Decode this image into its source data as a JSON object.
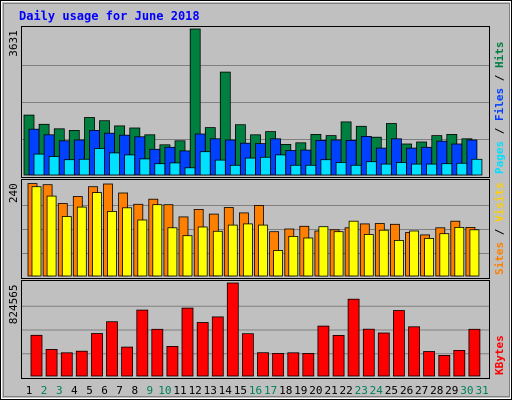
{
  "title": "Daily usage for June 2018",
  "chart_data": [
    {
      "type": "bar",
      "panel": "top",
      "ymax": 3631,
      "ymax_label": "3631",
      "categories": [
        "1",
        "2",
        "3",
        "4",
        "5",
        "6",
        "7",
        "8",
        "9",
        "10",
        "11",
        "12",
        "13",
        "14",
        "15",
        "16",
        "17",
        "18",
        "19",
        "20",
        "21",
        "22",
        "23",
        "24",
        "25",
        "26",
        "27",
        "28",
        "29",
        "30",
        "31"
      ],
      "right_label": [
        "Pages",
        "Files",
        "Hits"
      ],
      "series": [
        {
          "name": "Hits",
          "color": "#008040",
          "values": [
            1490,
            1260,
            1150,
            1110,
            1430,
            1350,
            1220,
            1170,
            1000,
            750,
            850,
            3631,
            1180,
            2560,
            1250,
            1000,
            1080,
            760,
            800,
            1010,
            980,
            1320,
            1210,
            940,
            1280,
            770,
            820,
            980,
            1010,
            900,
            null
          ]
        },
        {
          "name": "Files",
          "color": "#0040ff",
          "values": [
            1140,
            1000,
            850,
            870,
            1110,
            1040,
            990,
            950,
            640,
            690,
            600,
            1020,
            900,
            870,
            790,
            780,
            900,
            610,
            620,
            860,
            870,
            860,
            960,
            670,
            900,
            670,
            690,
            840,
            770,
            870,
            null
          ]
        },
        {
          "name": "Pages",
          "color": "#00e0ff",
          "values": [
            520,
            460,
            380,
            390,
            660,
            550,
            500,
            400,
            280,
            300,
            180,
            580,
            370,
            240,
            420,
            440,
            500,
            240,
            240,
            380,
            310,
            240,
            330,
            270,
            310,
            270,
            270,
            280,
            290,
            390,
            null
          ]
        }
      ]
    },
    {
      "type": "bar",
      "panel": "middle",
      "ymax": 240,
      "ymax_label": "240",
      "categories": [
        "1",
        "2",
        "3",
        "4",
        "5",
        "6",
        "7",
        "8",
        "9",
        "10",
        "11",
        "12",
        "13",
        "14",
        "15",
        "16",
        "17",
        "18",
        "19",
        "20",
        "21",
        "22",
        "23",
        "24",
        "25",
        "26",
        "27",
        "28",
        "29",
        "30",
        "31"
      ],
      "right_label": [
        "Sites",
        "Visits"
      ],
      "series": [
        {
          "name": "Visits",
          "color": "#ff8000",
          "values": [
            236,
            233,
            185,
            203,
            228,
            235,
            212,
            183,
            196,
            182,
            151,
            170,
            158,
            175,
            161,
            180,
            113,
            120,
            127,
            115,
            118,
            123,
            133,
            134,
            132,
            111,
            105,
            123,
            140,
            124,
            null
          ]
        },
        {
          "name": "Sites",
          "color": "#ffff00",
          "values": [
            228,
            204,
            152,
            176,
            213,
            165,
            174,
            143,
            182,
            123,
            103,
            125,
            114,
            130,
            133,
            130,
            65,
            101,
            97,
            126,
            113,
            140,
            106,
            117,
            91,
            115,
            96,
            108,
            124,
            118,
            null
          ]
        }
      ]
    },
    {
      "type": "bar",
      "panel": "bottom",
      "ymax": 824565,
      "ymax_label": "824565",
      "categories": [
        "1",
        "2",
        "3",
        "4",
        "5",
        "6",
        "7",
        "8",
        "9",
        "10",
        "11",
        "12",
        "13",
        "14",
        "15",
        "16",
        "17",
        "18",
        "19",
        "20",
        "21",
        "22",
        "23",
        "24",
        "25",
        "26",
        "27",
        "28",
        "29",
        "30",
        "31"
      ],
      "right_label": [
        "KBytes"
      ],
      "series": [
        {
          "name": "KBytes",
          "color": "#ff0000",
          "values": [
            361000,
            236000,
            206000,
            220000,
            377000,
            481000,
            256000,
            584000,
            414000,
            262000,
            602000,
            474000,
            524000,
            824565,
            375000,
            207000,
            200000,
            206000,
            200000,
            442000,
            360000,
            681000,
            415000,
            381000,
            581000,
            436000,
            217000,
            183000,
            227000,
            414000,
            null
          ]
        }
      ]
    }
  ],
  "x_labels": {
    "days": [
      "1",
      "2",
      "3",
      "4",
      "5",
      "6",
      "7",
      "8",
      "9",
      "10",
      "11",
      "12",
      "13",
      "14",
      "15",
      "16",
      "17",
      "18",
      "19",
      "20",
      "21",
      "22",
      "23",
      "24",
      "25",
      "26",
      "27",
      "28",
      "29",
      "30",
      "31"
    ],
    "weekend_days": [
      "2",
      "3",
      "9",
      "10",
      "16",
      "17",
      "23",
      "24",
      "30",
      "31"
    ],
    "weekday_color": "#000000",
    "weekend_color": "#00805c"
  },
  "colors": {
    "background": "#c0c0c0",
    "title": "#0000ff",
    "gridline": "#808080"
  }
}
